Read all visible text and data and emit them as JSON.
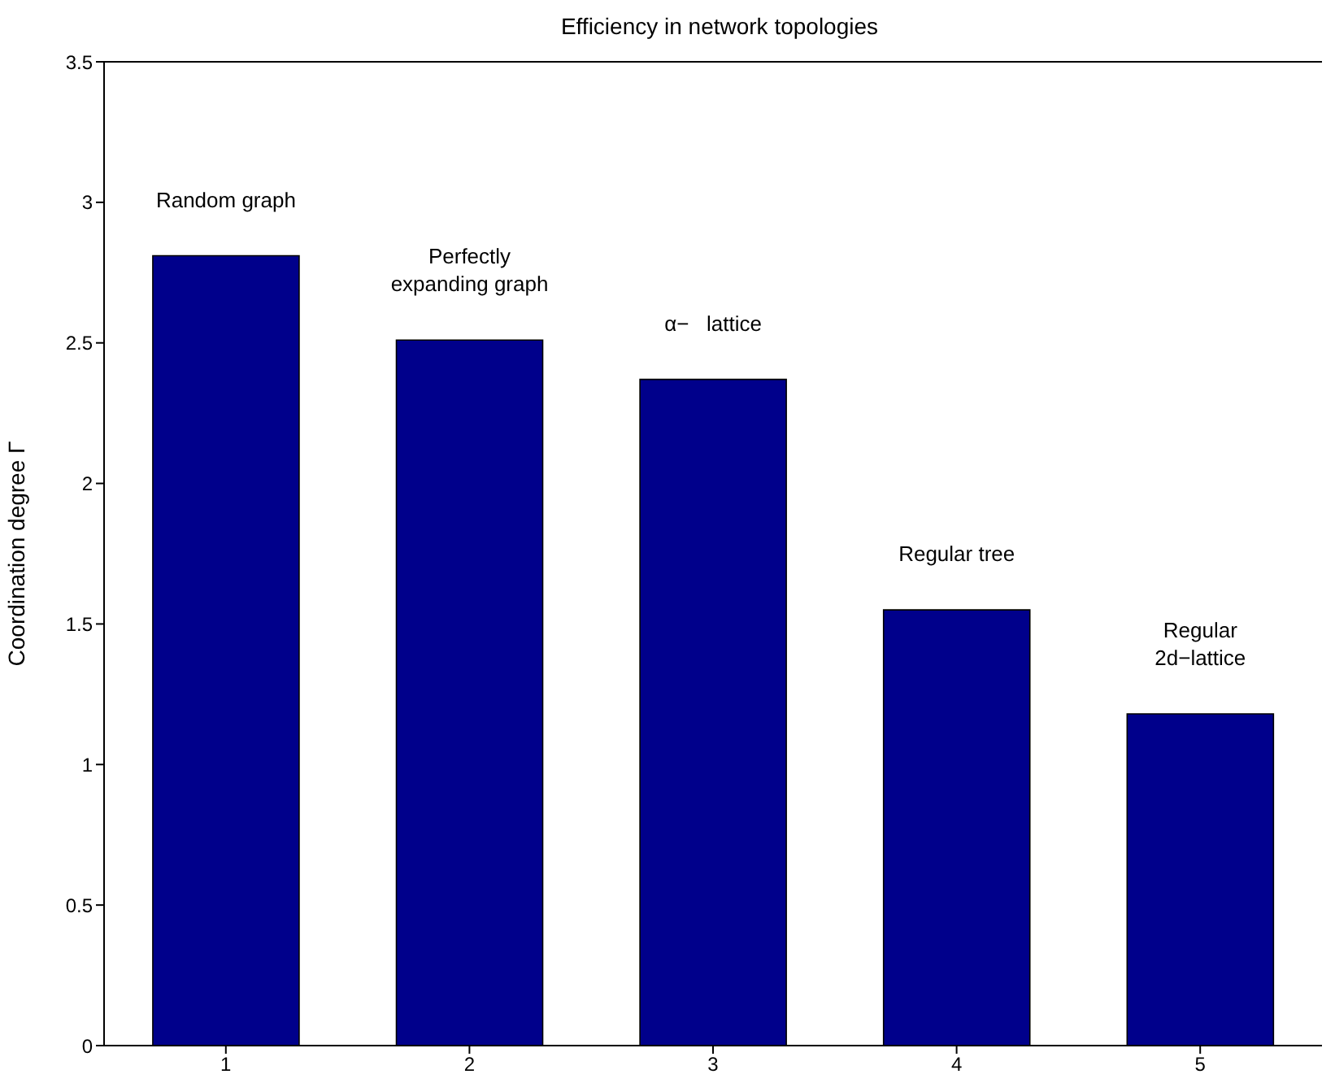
{
  "chart_data": {
    "type": "bar",
    "title": "Efficiency in network topologies",
    "ylabel": "Coordination degree Γ",
    "categories": [
      "1",
      "2",
      "3",
      "4",
      "5"
    ],
    "values": [
      2.81,
      2.51,
      2.37,
      1.55,
      1.18
    ],
    "color": "#00008b",
    "ylim": [
      0,
      3.5
    ],
    "yticks": [
      0,
      0.5,
      1,
      1.5,
      2,
      2.5,
      3,
      3.5
    ],
    "annotations": [
      "Random graph",
      "Perfectly\nexpanding graph",
      "α−   lattice",
      "Regular tree",
      "Regular\n2d−lattice"
    ]
  }
}
